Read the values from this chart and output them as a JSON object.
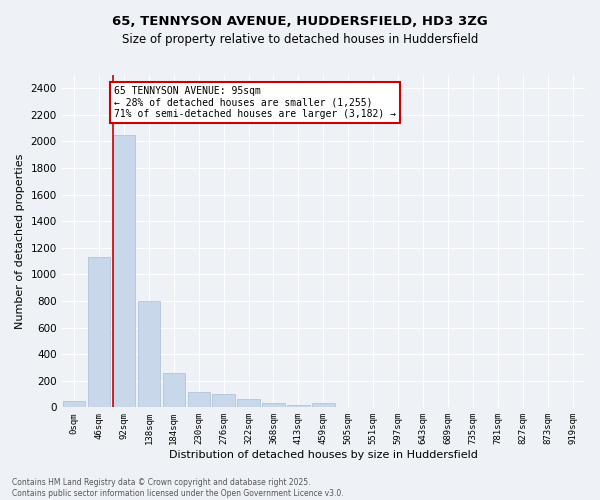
{
  "title": "65, TENNYSON AVENUE, HUDDERSFIELD, HD3 3ZG",
  "subtitle": "Size of property relative to detached houses in Huddersfield",
  "xlabel": "Distribution of detached houses by size in Huddersfield",
  "ylabel": "Number of detached properties",
  "bar_color": "#c8d8ea",
  "bar_edge_color": "#aabfd0",
  "categories": [
    "0sqm",
    "46sqm",
    "92sqm",
    "138sqm",
    "184sqm",
    "230sqm",
    "276sqm",
    "322sqm",
    "368sqm",
    "413sqm",
    "459sqm",
    "505sqm",
    "551sqm",
    "597sqm",
    "643sqm",
    "689sqm",
    "735sqm",
    "781sqm",
    "827sqm",
    "873sqm",
    "919sqm"
  ],
  "values": [
    50,
    1130,
    2050,
    800,
    255,
    115,
    100,
    60,
    30,
    20,
    35,
    0,
    0,
    0,
    0,
    0,
    0,
    0,
    0,
    0,
    0
  ],
  "ylim": [
    0,
    2500
  ],
  "yticks": [
    0,
    200,
    400,
    600,
    800,
    1000,
    1200,
    1400,
    1600,
    1800,
    2000,
    2200,
    2400
  ],
  "vline_x_index": 2,
  "vline_color": "#cc0000",
  "annotation_text": "65 TENNYSON AVENUE: 95sqm\n← 28% of detached houses are smaller (1,255)\n71% of semi-detached houses are larger (3,182) →",
  "annotation_box_color": "#cc0000",
  "footnote": "Contains HM Land Registry data © Crown copyright and database right 2025.\nContains public sector information licensed under the Open Government Licence v3.0.",
  "bg_color": "#eef2f6",
  "plot_bg_color": "#eef2f6",
  "grid_color": "#ffffff",
  "title_fontsize": 9.5,
  "subtitle_fontsize": 8.5
}
